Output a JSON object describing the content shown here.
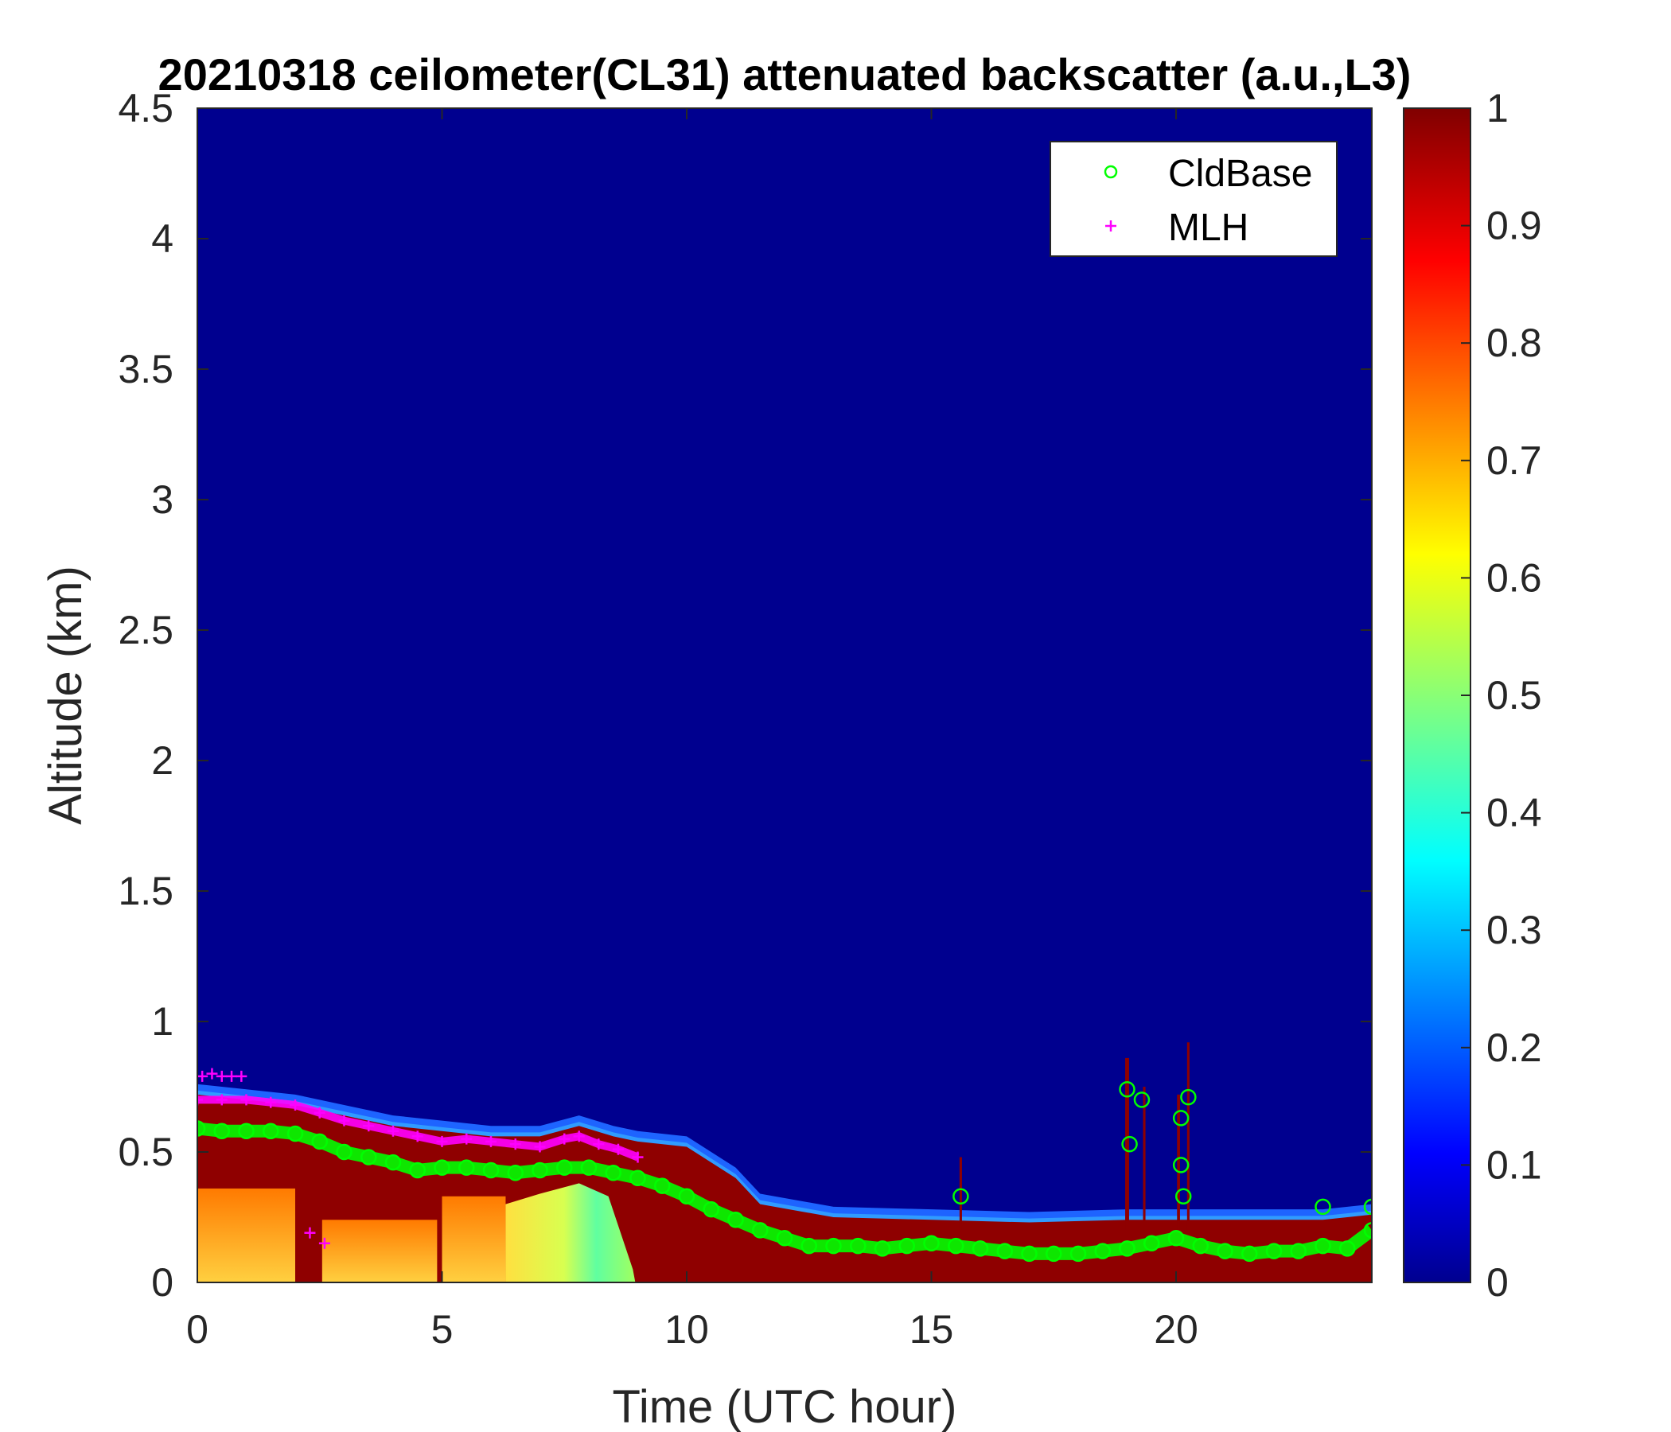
{
  "chart_data": {
    "type": "heatmap",
    "title": "20210318 ceilometer(CL31) attenuated backscatter (a.u.,L3)",
    "xlabel": "Time (UTC hour)",
    "ylabel": "Altitude (km)",
    "xlim": [
      0,
      24
    ],
    "ylim": [
      0,
      4.5
    ],
    "xticks": [
      "0",
      "5",
      "10",
      "15",
      "20"
    ],
    "yticks": [
      "0",
      "0.5",
      "1",
      "1.5",
      "2",
      "2.5",
      "3",
      "3.5",
      "4",
      "4.5"
    ],
    "colorbar": {
      "range": [
        0,
        1
      ],
      "colormap": "jet",
      "ticks": [
        "0",
        "0.1",
        "0.2",
        "0.3",
        "0.4",
        "0.5",
        "0.6",
        "0.7",
        "0.8",
        "0.9",
        "1"
      ]
    },
    "legend": {
      "position": "top-right",
      "entries": [
        {
          "label": "CldBase",
          "marker": "circle",
          "color": "#00ff00"
        },
        {
          "label": "MLH",
          "marker": "plus",
          "color": "#ff00ff"
        }
      ]
    },
    "background_color": "#00008f",
    "layer_top_km": [
      {
        "t": 0,
        "h": 0.72
      },
      {
        "t": 1,
        "h": 0.7
      },
      {
        "t": 2,
        "h": 0.68
      },
      {
        "t": 3,
        "h": 0.64
      },
      {
        "t": 4,
        "h": 0.6
      },
      {
        "t": 5,
        "h": 0.58
      },
      {
        "t": 6,
        "h": 0.56
      },
      {
        "t": 7,
        "h": 0.56
      },
      {
        "t": 7.8,
        "h": 0.6
      },
      {
        "t": 8.5,
        "h": 0.56
      },
      {
        "t": 9,
        "h": 0.54
      },
      {
        "t": 10,
        "h": 0.52
      },
      {
        "t": 11,
        "h": 0.4
      },
      {
        "t": 11.5,
        "h": 0.3
      },
      {
        "t": 13,
        "h": 0.25
      },
      {
        "t": 15,
        "h": 0.24
      },
      {
        "t": 17,
        "h": 0.23
      },
      {
        "t": 19,
        "h": 0.24
      },
      {
        "t": 21,
        "h": 0.24
      },
      {
        "t": 23,
        "h": 0.24
      },
      {
        "t": 24,
        "h": 0.26
      }
    ],
    "series": [
      {
        "name": "CldBase",
        "marker": "circle",
        "points": [
          {
            "t": 0.0,
            "h": 0.59
          },
          {
            "t": 0.5,
            "h": 0.58
          },
          {
            "t": 1.0,
            "h": 0.58
          },
          {
            "t": 1.5,
            "h": 0.58
          },
          {
            "t": 2.0,
            "h": 0.57
          },
          {
            "t": 2.5,
            "h": 0.54
          },
          {
            "t": 3.0,
            "h": 0.5
          },
          {
            "t": 3.5,
            "h": 0.48
          },
          {
            "t": 4.0,
            "h": 0.46
          },
          {
            "t": 4.5,
            "h": 0.43
          },
          {
            "t": 5.0,
            "h": 0.44
          },
          {
            "t": 5.5,
            "h": 0.44
          },
          {
            "t": 6.0,
            "h": 0.43
          },
          {
            "t": 6.5,
            "h": 0.42
          },
          {
            "t": 7.0,
            "h": 0.43
          },
          {
            "t": 7.5,
            "h": 0.44
          },
          {
            "t": 8.0,
            "h": 0.44
          },
          {
            "t": 8.5,
            "h": 0.42
          },
          {
            "t": 9.0,
            "h": 0.4
          },
          {
            "t": 9.5,
            "h": 0.37
          },
          {
            "t": 10.0,
            "h": 0.33
          },
          {
            "t": 10.5,
            "h": 0.28
          },
          {
            "t": 11.0,
            "h": 0.24
          },
          {
            "t": 11.5,
            "h": 0.2
          },
          {
            "t": 12.0,
            "h": 0.17
          },
          {
            "t": 12.5,
            "h": 0.14
          },
          {
            "t": 13.0,
            "h": 0.14
          },
          {
            "t": 13.5,
            "h": 0.14
          },
          {
            "t": 14.0,
            "h": 0.13
          },
          {
            "t": 14.5,
            "h": 0.14
          },
          {
            "t": 15.0,
            "h": 0.15
          },
          {
            "t": 15.5,
            "h": 0.14
          },
          {
            "t": 15.6,
            "h": 0.33
          },
          {
            "t": 16.0,
            "h": 0.13
          },
          {
            "t": 16.5,
            "h": 0.12
          },
          {
            "t": 17.0,
            "h": 0.11
          },
          {
            "t": 17.5,
            "h": 0.11
          },
          {
            "t": 18.0,
            "h": 0.11
          },
          {
            "t": 18.5,
            "h": 0.12
          },
          {
            "t": 19.0,
            "h": 0.13
          },
          {
            "t": 19.0,
            "h": 0.74
          },
          {
            "t": 19.05,
            "h": 0.53
          },
          {
            "t": 19.3,
            "h": 0.7
          },
          {
            "t": 19.5,
            "h": 0.15
          },
          {
            "t": 20.0,
            "h": 0.17
          },
          {
            "t": 20.1,
            "h": 0.63
          },
          {
            "t": 20.1,
            "h": 0.45
          },
          {
            "t": 20.15,
            "h": 0.33
          },
          {
            "t": 20.25,
            "h": 0.71
          },
          {
            "t": 20.5,
            "h": 0.14
          },
          {
            "t": 21.0,
            "h": 0.12
          },
          {
            "t": 21.5,
            "h": 0.11
          },
          {
            "t": 22.0,
            "h": 0.12
          },
          {
            "t": 22.5,
            "h": 0.12
          },
          {
            "t": 23.0,
            "h": 0.14
          },
          {
            "t": 23.0,
            "h": 0.29
          },
          {
            "t": 23.5,
            "h": 0.13
          },
          {
            "t": 24.0,
            "h": 0.2
          },
          {
            "t": 24.0,
            "h": 0.29
          }
        ]
      },
      {
        "name": "MLH",
        "marker": "plus",
        "points": [
          {
            "t": 0.1,
            "h": 0.79
          },
          {
            "t": 0.3,
            "h": 0.8
          },
          {
            "t": 0.5,
            "h": 0.79
          },
          {
            "t": 0.7,
            "h": 0.79
          },
          {
            "t": 0.9,
            "h": 0.79
          },
          {
            "t": 0.0,
            "h": 0.7
          },
          {
            "t": 0.5,
            "h": 0.7
          },
          {
            "t": 1.0,
            "h": 0.7
          },
          {
            "t": 1.5,
            "h": 0.69
          },
          {
            "t": 2.0,
            "h": 0.68
          },
          {
            "t": 2.3,
            "h": 0.19
          },
          {
            "t": 2.6,
            "h": 0.15
          },
          {
            "t": 2.5,
            "h": 0.65
          },
          {
            "t": 3.0,
            "h": 0.62
          },
          {
            "t": 3.5,
            "h": 0.6
          },
          {
            "t": 4.0,
            "h": 0.58
          },
          {
            "t": 4.5,
            "h": 0.56
          },
          {
            "t": 5.0,
            "h": 0.54
          },
          {
            "t": 5.5,
            "h": 0.55
          },
          {
            "t": 6.0,
            "h": 0.54
          },
          {
            "t": 6.5,
            "h": 0.53
          },
          {
            "t": 7.0,
            "h": 0.52
          },
          {
            "t": 7.5,
            "h": 0.55
          },
          {
            "t": 7.8,
            "h": 0.56
          },
          {
            "t": 8.2,
            "h": 0.53
          },
          {
            "t": 8.6,
            "h": 0.51
          },
          {
            "t": 9.0,
            "h": 0.48
          }
        ]
      }
    ]
  }
}
